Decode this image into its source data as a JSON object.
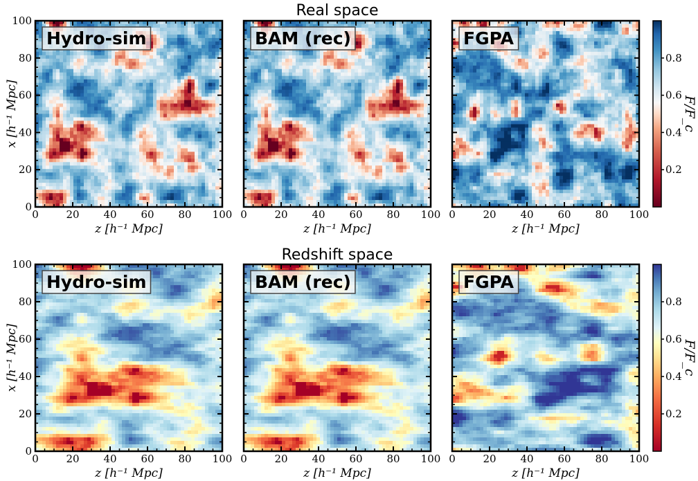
{
  "chart_data": {
    "type": "heatmap",
    "rows": [
      {
        "title": "Real space",
        "colormap": "RdBu",
        "panels": [
          {
            "label": "Hydro-sim"
          },
          {
            "label": "BAM (rec)"
          },
          {
            "label": "FGPA"
          }
        ],
        "colorbar": {
          "label": "F/F_c",
          "range": [
            0.0,
            1.0
          ],
          "ticks": [
            "0.2",
            "0.4",
            "0.6",
            "0.8"
          ]
        }
      },
      {
        "title": "Redshift space",
        "colormap": "RdYlBu",
        "panels": [
          {
            "label": "Hydro-sim"
          },
          {
            "label": "BAM (rec)"
          },
          {
            "label": "FGPA"
          }
        ],
        "colorbar": {
          "label": "F/F_c",
          "range": [
            0.0,
            1.0
          ],
          "ticks": [
            "0.2",
            "0.4",
            "0.6",
            "0.8"
          ]
        }
      }
    ],
    "xlabel": "z [h⁻¹ Mpc]",
    "ylabel": "x [h⁻¹ Mpc]",
    "xlim": [
      0,
      100
    ],
    "ylim": [
      0,
      100
    ],
    "xticks": [
      "0",
      "20",
      "40",
      "60",
      "80",
      "100"
    ],
    "yticks": [
      "0",
      "20",
      "40",
      "60",
      "80",
      "100"
    ]
  }
}
